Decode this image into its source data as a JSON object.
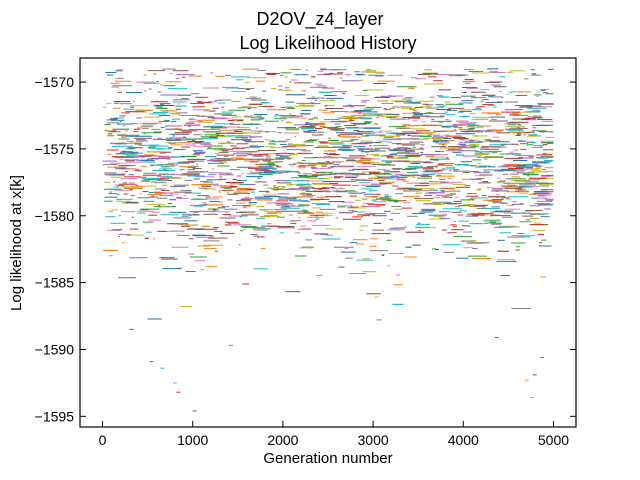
{
  "chart_data": {
    "type": "scatter",
    "title": "D2OV_z4_layer",
    "subtitle": "Log Likelihood History",
    "xlabel": "Generation number",
    "ylabel": "Log likelihood at x[k]",
    "xlim": [
      -250,
      5250
    ],
    "ylim": [
      -1595.8,
      -1568.2
    ],
    "xticks": [
      0,
      1000,
      2000,
      3000,
      4000,
      5000
    ],
    "yticks": [
      -1570,
      -1575,
      -1580,
      -1585,
      -1590,
      -1595
    ],
    "xtick_labels": [
      "0",
      "1000",
      "2000",
      "3000",
      "4000",
      "5000"
    ],
    "ytick_labels": [
      "−1570",
      "−1575",
      "−1580",
      "−1585",
      "−1590",
      "−1595"
    ],
    "grid": false,
    "legend": "none",
    "generations": [
      0,
      5000
    ],
    "dense_band": [
      -1582,
      -1569.5
    ],
    "palette": [
      "#1f77b4",
      "#ff7f0e",
      "#2ca02c",
      "#d62728",
      "#9467bd",
      "#8c564b",
      "#e377c2",
      "#7f7f7f",
      "#bcbd22",
      "#17becf"
    ],
    "outliers": [
      {
        "x": 1000,
        "y": -1594.6
      },
      {
        "x": 820,
        "y": -1593.2
      },
      {
        "x": 780,
        "y": -1592.5
      },
      {
        "x": 640,
        "y": -1591.4
      },
      {
        "x": 520,
        "y": -1590.9
      },
      {
        "x": 4770,
        "y": -1591.9
      },
      {
        "x": 4740,
        "y": -1593.6
      },
      {
        "x": 4680,
        "y": -1592.3
      },
      {
        "x": 4850,
        "y": -1590.6
      },
      {
        "x": 1400,
        "y": -1589.7
      },
      {
        "x": 4350,
        "y": -1589.1
      },
      {
        "x": 300,
        "y": -1588.5
      }
    ]
  }
}
